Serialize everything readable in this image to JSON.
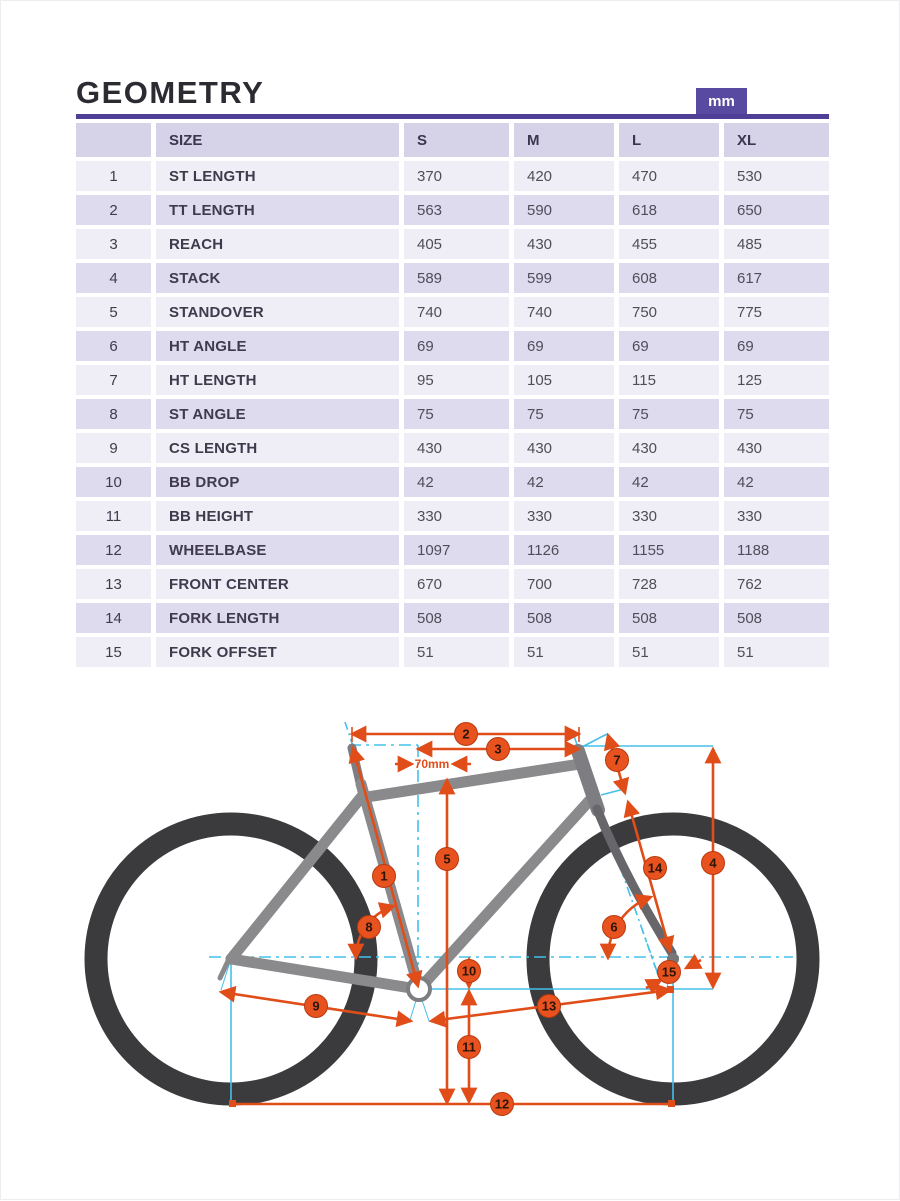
{
  "header": {
    "title": "GEOMETRY",
    "unit_badge": "mm"
  },
  "table": {
    "columns": [
      "",
      "SIZE",
      "S",
      "M",
      "L",
      "XL"
    ],
    "rows": [
      {
        "num": "1",
        "label": "ST LENGTH",
        "values": [
          "370",
          "420",
          "470",
          "530"
        ]
      },
      {
        "num": "2",
        "label": "TT LENGTH",
        "values": [
          "563",
          "590",
          "618",
          "650"
        ]
      },
      {
        "num": "3",
        "label": "REACH",
        "values": [
          "405",
          "430",
          "455",
          "485"
        ]
      },
      {
        "num": "4",
        "label": "STACK",
        "values": [
          "589",
          "599",
          "608",
          "617"
        ]
      },
      {
        "num": "5",
        "label": "STANDOVER",
        "values": [
          "740",
          "740",
          "750",
          "775"
        ]
      },
      {
        "num": "6",
        "label": "HT ANGLE",
        "values": [
          "69",
          "69",
          "69",
          "69"
        ]
      },
      {
        "num": "7",
        "label": "HT LENGTH",
        "values": [
          "95",
          "105",
          "115",
          "125"
        ]
      },
      {
        "num": "8",
        "label": "ST ANGLE",
        "values": [
          "75",
          "75",
          "75",
          "75"
        ]
      },
      {
        "num": "9",
        "label": "CS LENGTH",
        "values": [
          "430",
          "430",
          "430",
          "430"
        ]
      },
      {
        "num": "10",
        "label": "BB DROP",
        "values": [
          "42",
          "42",
          "42",
          "42"
        ]
      },
      {
        "num": "11",
        "label": "BB HEIGHT",
        "values": [
          "330",
          "330",
          "330",
          "330"
        ]
      },
      {
        "num": "12",
        "label": "WHEELBASE",
        "values": [
          "1097",
          "1126",
          "1155",
          "1188"
        ]
      },
      {
        "num": "13",
        "label": "FRONT CENTER",
        "values": [
          "670",
          "700",
          "728",
          "762"
        ]
      },
      {
        "num": "14",
        "label": "FORK LENGTH",
        "values": [
          "508",
          "508",
          "508",
          "508"
        ]
      },
      {
        "num": "15",
        "label": "FORK OFFSET",
        "values": [
          "51",
          "51",
          "51",
          "51"
        ]
      }
    ]
  },
  "diagram": {
    "callout_labels": [
      "1",
      "2",
      "3",
      "4",
      "5",
      "6",
      "7",
      "8",
      "9",
      "10",
      "11",
      "12",
      "13",
      "14",
      "15"
    ],
    "setback_label": "70mm"
  },
  "colors": {
    "accent_purple": "#4f3f97",
    "badge_purple": "#584aa0",
    "dimension_orange": "#e04d18",
    "reference_cyan": "#45c0e9",
    "frame_gray": "#8a8a8d",
    "wheel_dark": "#3b3b3e"
  }
}
